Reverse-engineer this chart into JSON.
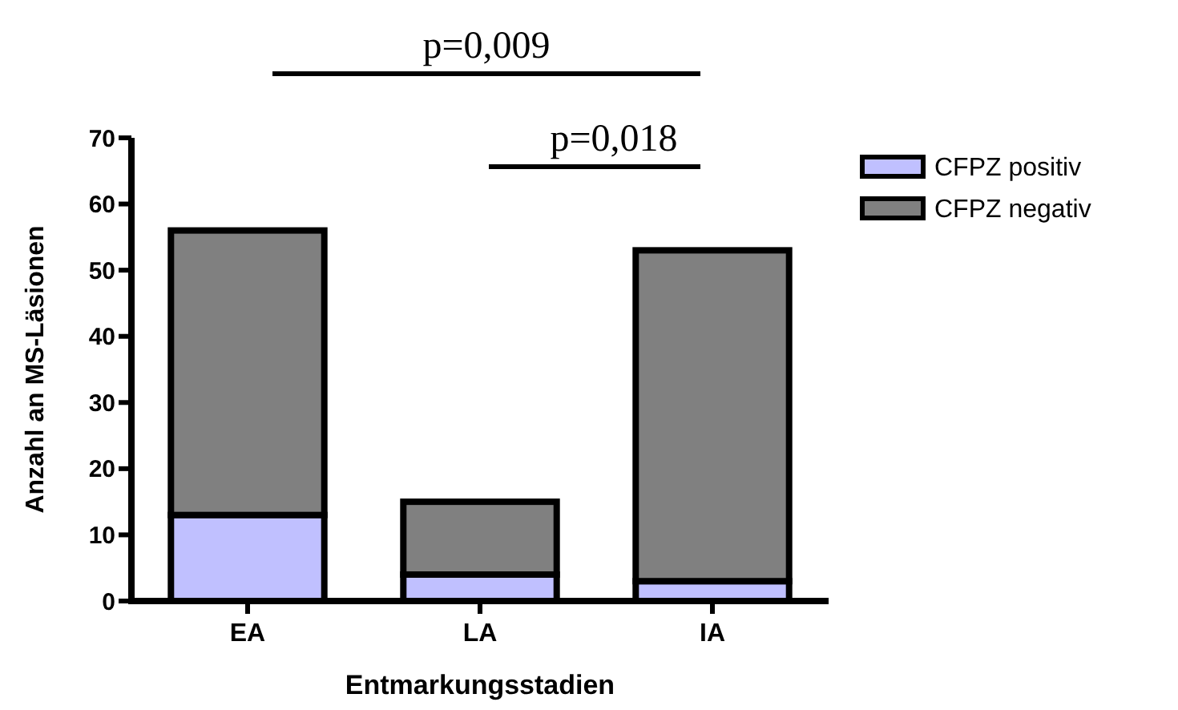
{
  "chart_data": {
    "type": "bar",
    "stacked": true,
    "xlabel": "Entmarkungsstadien",
    "ylabel": "Anzahl an MS-Läsionen",
    "categories": [
      "EA",
      "LA",
      "IA"
    ],
    "series": [
      {
        "name": "CFPZ positiv",
        "color": "#c0c0ff",
        "values": [
          13,
          4,
          3
        ]
      },
      {
        "name": "CFPZ negativ",
        "color": "#808080",
        "values": [
          43,
          11,
          50
        ]
      }
    ],
    "ylim": [
      0,
      70
    ],
    "yticks": [
      0,
      10,
      20,
      30,
      40,
      50,
      60,
      70
    ],
    "grid": false,
    "legend": "top right",
    "annotations": [
      "p=0,009",
      "p=0,018"
    ]
  }
}
